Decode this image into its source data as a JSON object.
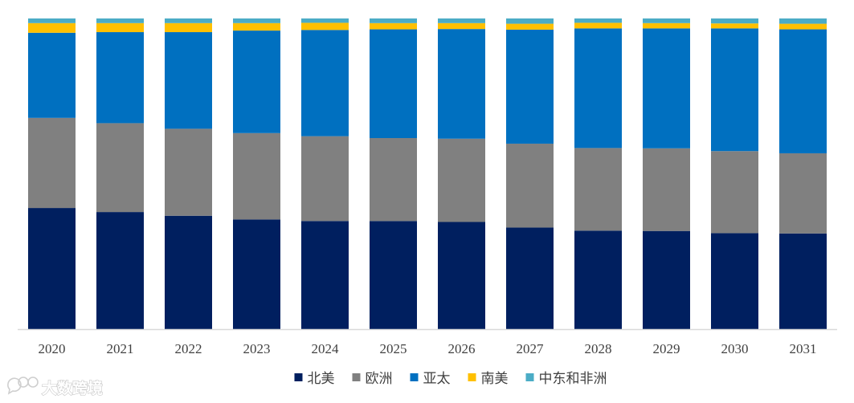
{
  "chart_data": {
    "type": "bar",
    "stacked": true,
    "normalized": true,
    "categories": [
      "2020",
      "2021",
      "2022",
      "2023",
      "2024",
      "2025",
      "2026",
      "2027",
      "2028",
      "2029",
      "2030",
      "2031"
    ],
    "series": [
      {
        "name": "北美",
        "color": "#001f5f",
        "values": [
          39.0,
          37.7,
          36.5,
          35.3,
          34.8,
          34.8,
          34.5,
          32.7,
          31.7,
          31.6,
          30.9,
          30.8
        ]
      },
      {
        "name": "欧洲",
        "color": "#808080",
        "values": [
          29.0,
          28.6,
          28.0,
          27.8,
          27.3,
          26.7,
          26.8,
          27.0,
          26.6,
          26.6,
          26.4,
          25.8
        ]
      },
      {
        "name": "亚太",
        "color": "#0070c0",
        "values": [
          27.4,
          29.3,
          31.1,
          33.0,
          34.2,
          35.0,
          35.3,
          36.7,
          38.5,
          38.6,
          39.5,
          39.9
        ]
      },
      {
        "name": "南美",
        "color": "#ffc000",
        "values": [
          3.1,
          2.9,
          2.9,
          2.4,
          2.3,
          2.0,
          1.9,
          1.9,
          1.8,
          1.7,
          1.6,
          1.8
        ]
      },
      {
        "name": "中东和非洲",
        "color": "#4bacc6",
        "values": [
          1.5,
          1.5,
          1.5,
          1.5,
          1.4,
          1.5,
          1.5,
          1.7,
          1.4,
          1.5,
          1.6,
          1.7
        ]
      }
    ],
    "ylim": [
      0,
      100
    ],
    "grid": false,
    "legend_position": "bottom"
  },
  "watermark": {
    "text": "大数跨境",
    "icon": "chat-bubble-logo-icon"
  }
}
